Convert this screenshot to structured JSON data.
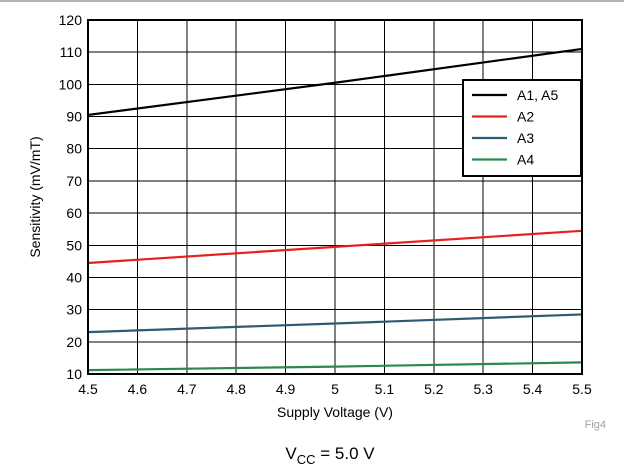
{
  "figure_id": "Fig4",
  "caption": {
    "symbol": "V",
    "subscript": "CC",
    "value_text": " = 5.0 V"
  },
  "chart_data": {
    "type": "line",
    "title": "",
    "xlabel": "Supply Voltage (V)",
    "ylabel": "Sensitivity (mV/mT)",
    "xlim": [
      4.5,
      5.5
    ],
    "ylim": [
      10,
      120
    ],
    "x_ticks": [
      4.5,
      4.6,
      4.7,
      4.8,
      4.9,
      5.0,
      5.1,
      5.2,
      5.3,
      5.4,
      5.5
    ],
    "x_tick_labels": [
      "4.5",
      "4.6",
      "4.7",
      "4.8",
      "4.9",
      "5",
      "5.1",
      "5.2",
      "5.3",
      "5.4",
      "5.5"
    ],
    "y_ticks": [
      10,
      20,
      30,
      40,
      50,
      60,
      70,
      80,
      90,
      100,
      110,
      120
    ],
    "y_tick_labels": [
      "10",
      "20",
      "30",
      "40",
      "50",
      "60",
      "70",
      "80",
      "90",
      "100",
      "110",
      "120"
    ],
    "grid": true,
    "legend_position": "top-right",
    "series": [
      {
        "name": "A1, A5",
        "color": "#000000",
        "x": [
          4.5,
          5.0,
          5.5
        ],
        "y": [
          90.5,
          100.5,
          111
        ]
      },
      {
        "name": "A2",
        "color": "#e8201c",
        "x": [
          4.5,
          5.0,
          5.5
        ],
        "y": [
          44.5,
          49.5,
          54.5
        ]
      },
      {
        "name": "A3",
        "color": "#2e5a73",
        "x": [
          4.5,
          5.0,
          5.5
        ],
        "y": [
          23,
          25.7,
          28.5
        ]
      },
      {
        "name": "A4",
        "color": "#2a8a4e",
        "x": [
          4.5,
          5.0,
          5.5
        ],
        "y": [
          11.2,
          12.3,
          13.6
        ]
      }
    ]
  }
}
